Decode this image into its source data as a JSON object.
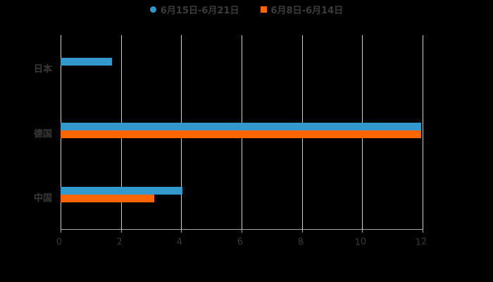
{
  "chart_data": {
    "type": "bar",
    "orientation": "horizontal",
    "title": "",
    "xlabel": "",
    "ylabel": "",
    "categories": [
      "日本",
      "德国",
      "中国"
    ],
    "series": [
      {
        "name": "6月15日-6月21日",
        "color": "#3399cc",
        "values": [
          1.7,
          11.95,
          4.05
        ]
      },
      {
        "name": "6月8日-6月14日",
        "color": "#ff6600",
        "values": [
          0,
          11.95,
          3.1
        ]
      }
    ],
    "xlim": [
      0,
      12
    ],
    "xticks": [
      "0",
      "2",
      "4",
      "6",
      "8",
      "10",
      "12"
    ],
    "grid": true,
    "legend_position": "top"
  },
  "legend": {
    "items": [
      {
        "label": "6月15日-6月21日",
        "color": "#3399cc",
        "shape": "circle"
      },
      {
        "label": "6月8日-6月14日",
        "color": "#ff6600",
        "shape": "square"
      }
    ]
  }
}
